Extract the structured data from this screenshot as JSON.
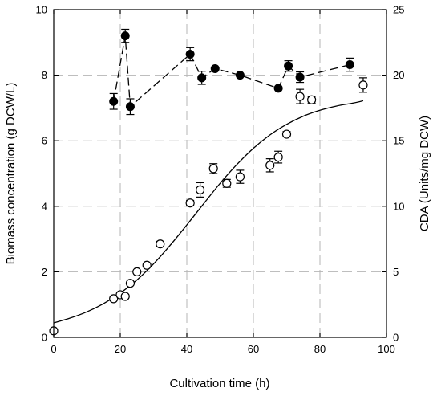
{
  "chart_data": {
    "type": "scatter",
    "xlabel": "Cultivation time (h)",
    "ylabel": "Biomass concentration (g DCW/L)",
    "y2label": "CDA (Units/mg DCW)",
    "xlim": [
      0,
      100
    ],
    "ylim": [
      0,
      10
    ],
    "y2lim": [
      0,
      25
    ],
    "xticks": [
      "0",
      "20",
      "40",
      "60",
      "80",
      "100"
    ],
    "yticks": [
      "0",
      "2",
      "4",
      "6",
      "8",
      "10"
    ],
    "y2ticks": [
      "0",
      "5",
      "10",
      "15",
      "20",
      "25"
    ],
    "grid": true,
    "series": [
      {
        "marker": "open-circle",
        "axis": "left",
        "color": "#000000",
        "points": [
          {
            "x": 0,
            "y": 0.2,
            "err": 0
          },
          {
            "x": 18,
            "y": 1.18,
            "err": 0
          },
          {
            "x": 20,
            "y": 1.3,
            "err": 0.04
          },
          {
            "x": 21.5,
            "y": 1.25,
            "err": 0.04
          },
          {
            "x": 23,
            "y": 1.65,
            "err": 0
          },
          {
            "x": 25,
            "y": 2.0,
            "err": 0
          },
          {
            "x": 28,
            "y": 2.2,
            "err": 0
          },
          {
            "x": 32,
            "y": 2.85,
            "err": 0.08
          },
          {
            "x": 41,
            "y": 4.1,
            "err": 0.08
          },
          {
            "x": 44,
            "y": 4.5,
            "err": 0.22
          },
          {
            "x": 48,
            "y": 5.15,
            "err": 0.15
          },
          {
            "x": 52,
            "y": 4.7,
            "err": 0.12
          },
          {
            "x": 56,
            "y": 4.9,
            "err": 0.2
          },
          {
            "x": 65,
            "y": 5.25,
            "err": 0.2
          },
          {
            "x": 67.5,
            "y": 5.5,
            "err": 0.18
          },
          {
            "x": 70,
            "y": 6.2,
            "err": 0.08
          },
          {
            "x": 74,
            "y": 7.35,
            "err": 0.22
          },
          {
            "x": 77.5,
            "y": 7.25,
            "err": 0.1
          },
          {
            "x": 93,
            "y": 7.7,
            "err": 0.22
          }
        ]
      },
      {
        "marker": "filled-circle",
        "axis": "right",
        "line": "dashed",
        "color": "#000000",
        "points": [
          {
            "x": 18,
            "y": 18.0,
            "err": 0.6
          },
          {
            "x": 21.5,
            "y": 23.0,
            "err": 0.5
          },
          {
            "x": 23,
            "y": 17.6,
            "err": 0.6
          },
          {
            "x": 41,
            "y": 21.6,
            "err": 0.5
          },
          {
            "x": 44.5,
            "y": 19.8,
            "err": 0.5
          },
          {
            "x": 48.5,
            "y": 20.5,
            "err": 0
          },
          {
            "x": 56,
            "y": 20.0,
            "err": 0
          },
          {
            "x": 67.5,
            "y": 19.0,
            "err": 0
          },
          {
            "x": 70.5,
            "y": 20.7,
            "err": 0.4
          },
          {
            "x": 74,
            "y": 19.85,
            "err": 0.4
          },
          {
            "x": 89,
            "y": 20.8,
            "err": 0.5
          }
        ]
      }
    ],
    "fit_curve": {
      "axis": "left",
      "style": "solid",
      "x": [
        0,
        5,
        10,
        15,
        20,
        25,
        30,
        35,
        40,
        45,
        50,
        55,
        60,
        65,
        70,
        75,
        80,
        85,
        90,
        93
      ],
      "y": [
        0.44,
        0.59,
        0.78,
        1.03,
        1.35,
        1.75,
        2.24,
        2.81,
        3.43,
        4.07,
        4.7,
        5.27,
        5.77,
        6.18,
        6.5,
        6.75,
        6.93,
        7.06,
        7.15,
        7.22
      ]
    }
  }
}
